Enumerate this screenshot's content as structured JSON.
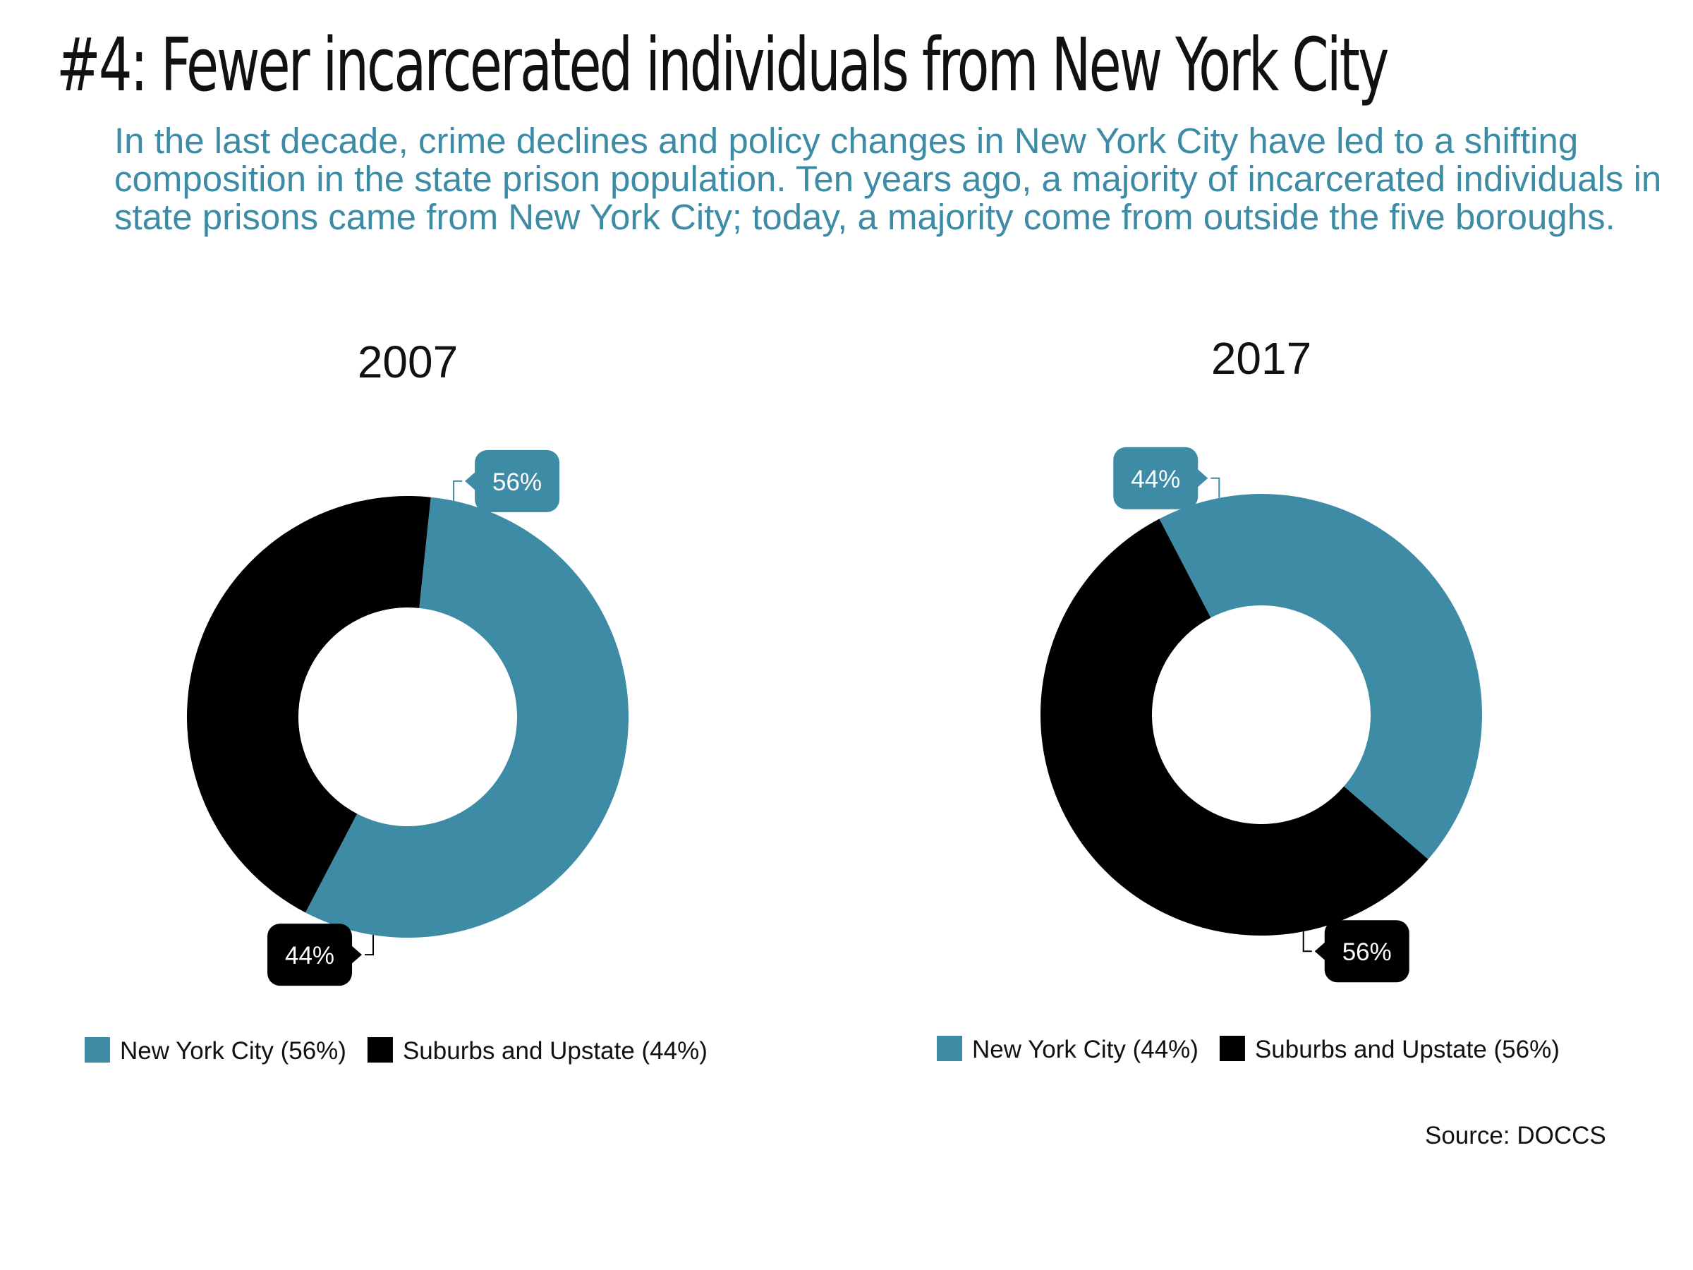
{
  "title": "#4: Fewer incarcerated individuals from New York City",
  "subtitle": "In the last decade, crime declines and policy changes in New York City have led to a shifting composition in the state prison population. Ten years ago, a majority of incarcerated individuals in state prisons came from New York City; today, a majority come from outside the five boroughs.",
  "source": "Source: DOCCS",
  "colors": {
    "nyc": "#3e8ba5",
    "suburbs": "#000000"
  },
  "chart_data": [
    {
      "type": "pie",
      "title": "2007",
      "categories": [
        "New York City",
        "Suburbs and Upstate"
      ],
      "values": [
        56,
        44
      ],
      "data_labels": [
        "56%",
        "44%"
      ],
      "legend": [
        "New York City (56%)",
        "Suburbs and Upstate (44%)"
      ],
      "legend_position": "bottom"
    },
    {
      "type": "pie",
      "title": "2017",
      "categories": [
        "New York City",
        "Suburbs and Upstate"
      ],
      "values": [
        44,
        56
      ],
      "data_labels": [
        "44%",
        "56%"
      ],
      "legend": [
        "New York City (44%)",
        "Suburbs and Upstate (56%)"
      ],
      "legend_position": "bottom"
    }
  ]
}
